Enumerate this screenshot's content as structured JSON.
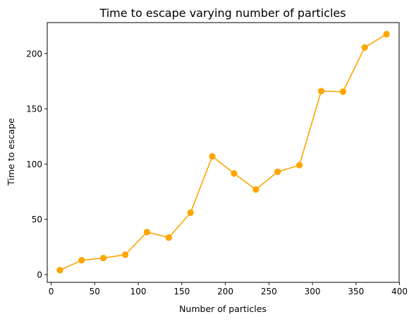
{
  "chart_data": {
    "type": "line",
    "title": "Time to escape varying number of particles",
    "xlabel": "Number of particles",
    "ylabel": "Time to escape",
    "xlim": [
      -4.5,
      399.5
    ],
    "ylim": [
      -7,
      228
    ],
    "xticks": [
      0,
      50,
      100,
      150,
      200,
      250,
      300,
      350,
      400
    ],
    "yticks": [
      0,
      50,
      100,
      150,
      200
    ],
    "grid": false,
    "legend": "none",
    "series": [
      {
        "color": "#ffa500",
        "marker": "circle",
        "x": [
          10,
          35,
          60,
          85,
          110,
          135,
          160,
          185,
          210,
          235,
          260,
          285,
          310,
          335,
          360,
          385
        ],
        "y": [
          4,
          13,
          15,
          18,
          38.5,
          33.5,
          56,
          107,
          91.5,
          77,
          93,
          99,
          166,
          165.5,
          205.5,
          217.5
        ]
      }
    ]
  }
}
